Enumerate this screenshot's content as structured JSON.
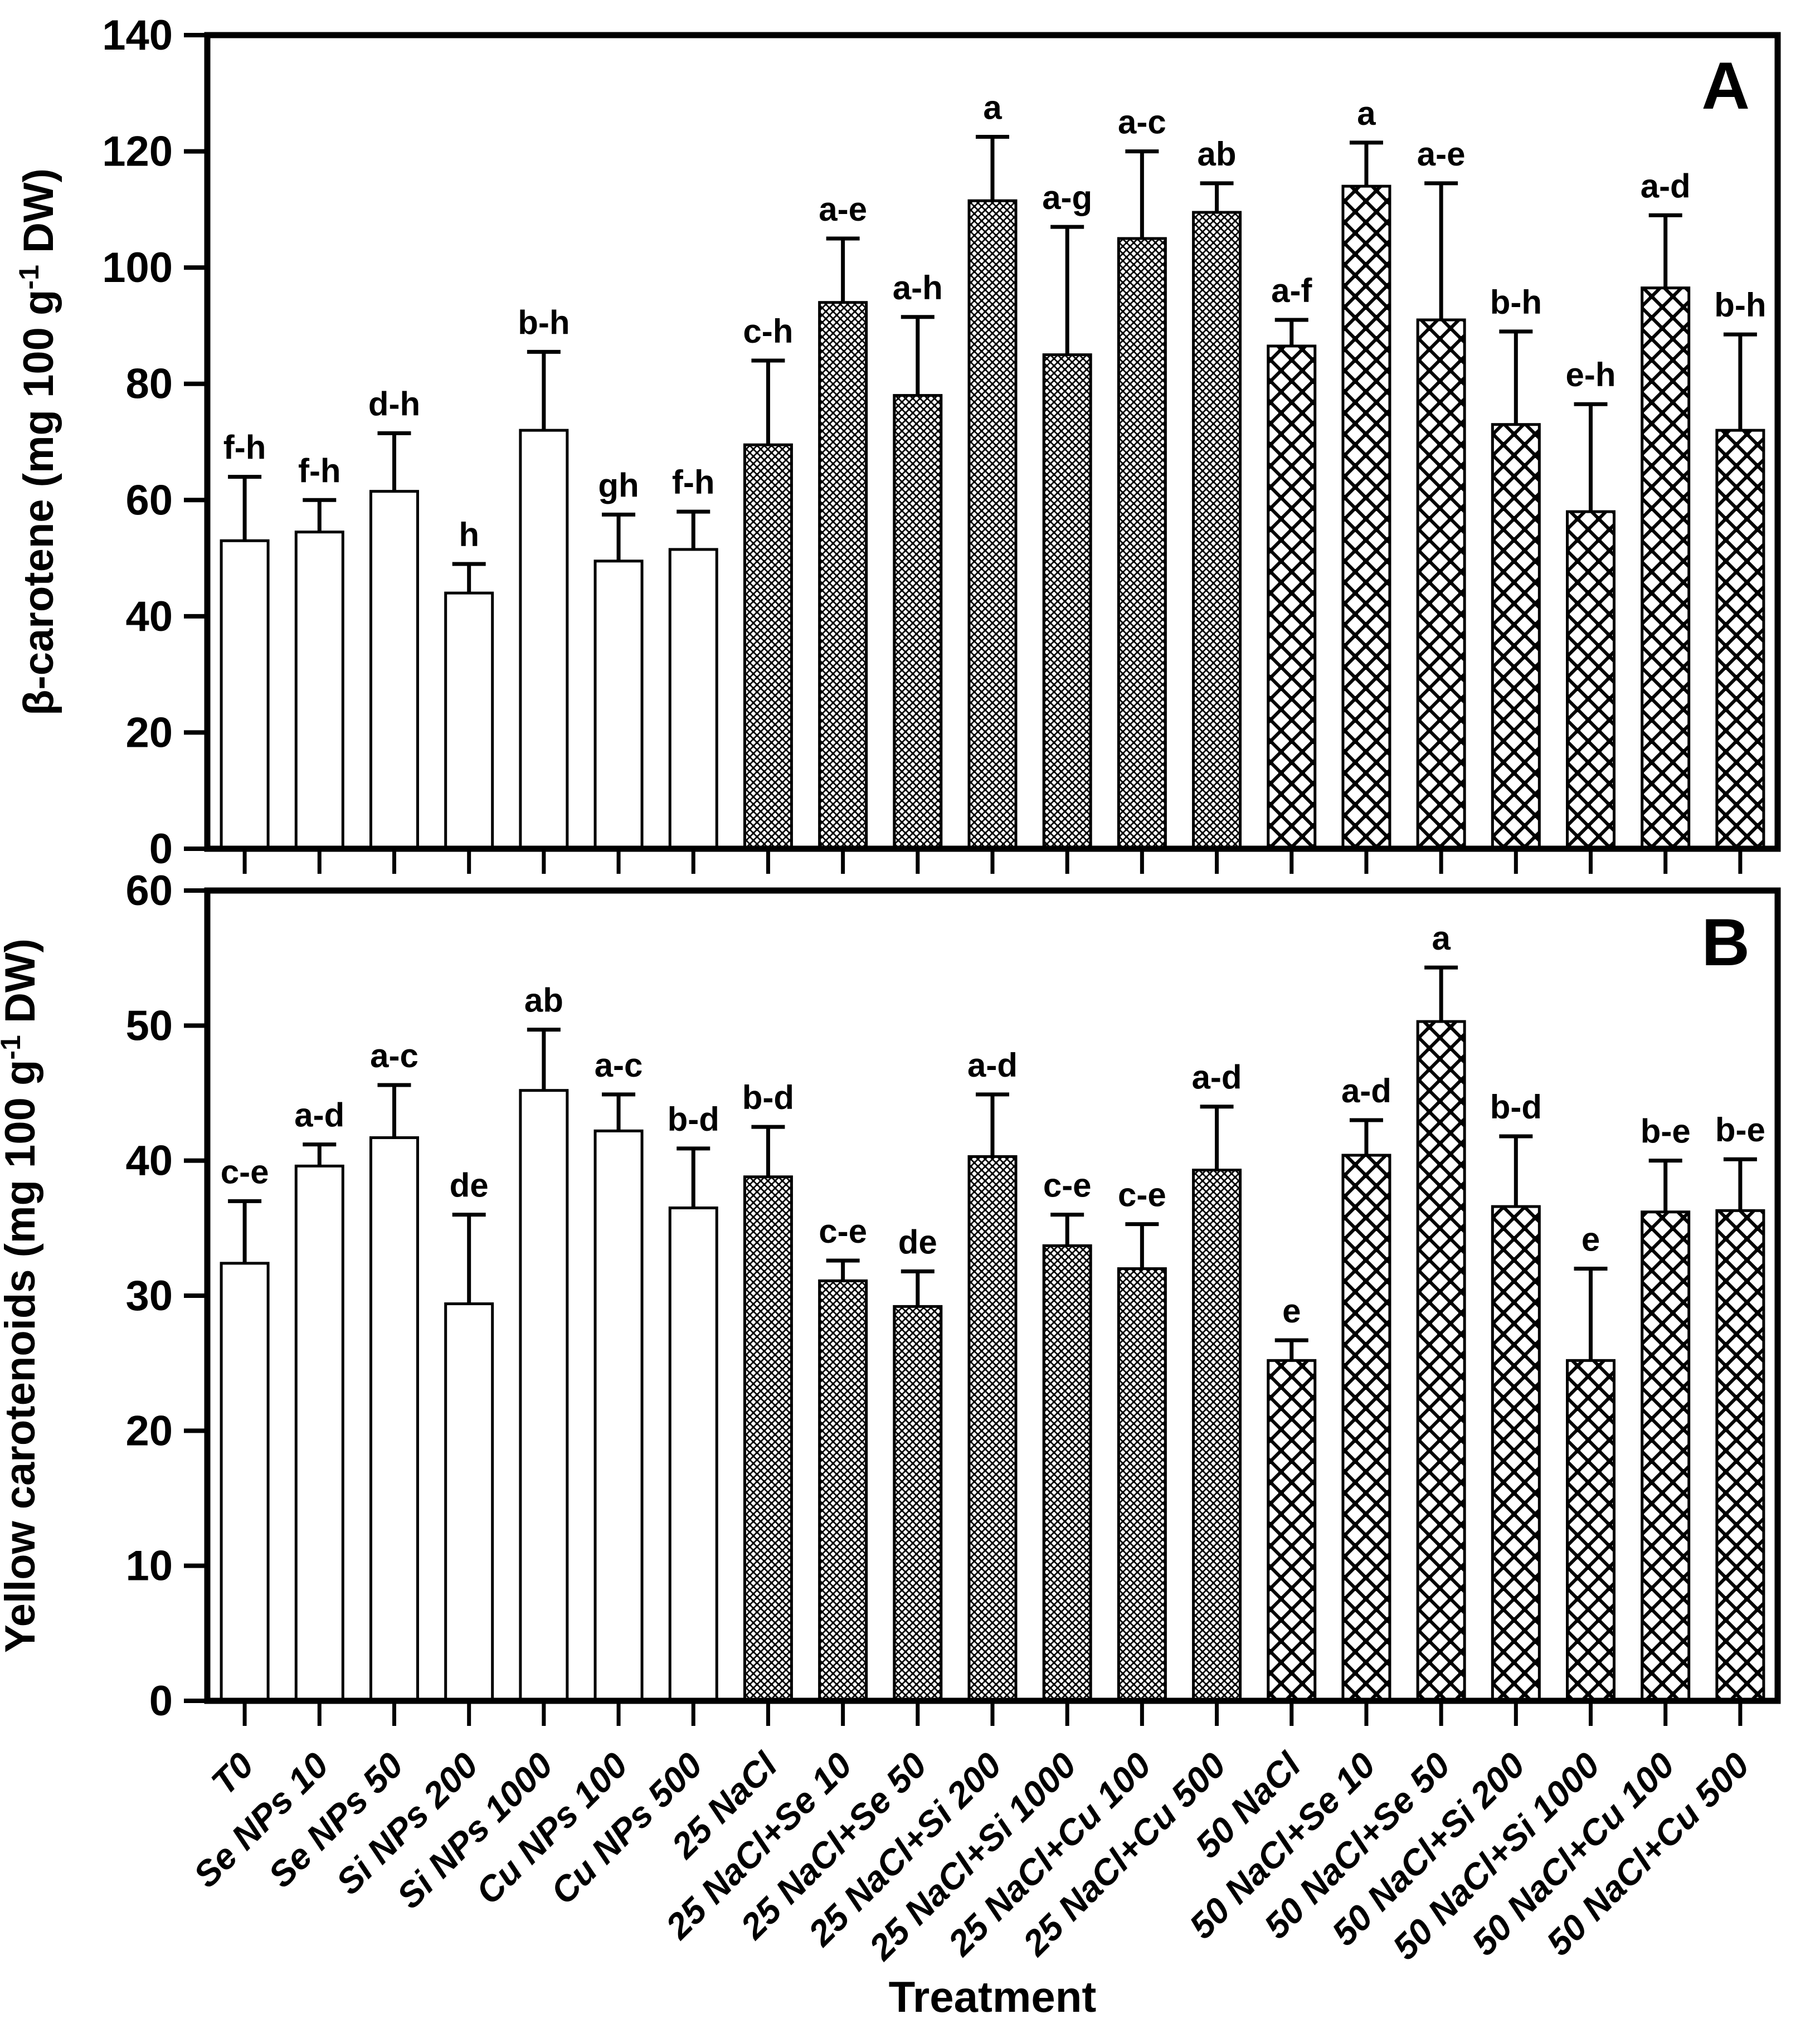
{
  "figure": {
    "xlabel": "Treatment",
    "background_color": "#ffffff",
    "ink_color": "#000000"
  },
  "chart_data": [
    {
      "type": "bar",
      "panel_label": "A",
      "ylabel": "β-carotene (mg 100 g⁻¹ DW)",
      "ylabel_parts": {
        "main": "β-carotene (mg 100 g",
        "sup": "-1",
        "end": " DW)"
      },
      "ylim": [
        0,
        140
      ],
      "ytick_step": 20,
      "grid": false,
      "legend": "none",
      "error_bars": "upper",
      "categories": [
        "T0",
        "Se NPs 10",
        "Se NPs 50",
        "Si NPs 200",
        "Si NPs 1000",
        "Cu NPs 100",
        "Cu NPs 500",
        "25 NaCl",
        "25 NaCl+Se 10",
        "25 NaCl+Se 50",
        "25 NaCl+Si 200",
        "25 NaCl+Si 1000",
        "25 NaCl+Cu 100",
        "25 NaCl+Cu 500",
        "50 NaCl",
        "50 NaCl+Se 10",
        "50 NaCl+Se 50",
        "50 NaCl+Si 200",
        "50 NaCl+Si 1000",
        "50 NaCl+Cu 100",
        "50 NaCl+Cu 500"
      ],
      "values": [
        53,
        54.5,
        61.5,
        44,
        72,
        49.5,
        51.5,
        69.5,
        94,
        78,
        111.5,
        85,
        105,
        109.5,
        86.5,
        114,
        91,
        73,
        58,
        96.5,
        72
      ],
      "errors_up": [
        11,
        5.5,
        10,
        5,
        13.5,
        8,
        6.5,
        14.5,
        11,
        13.5,
        11,
        22,
        15,
        5,
        4.5,
        7.5,
        23.5,
        16,
        18.5,
        12.5,
        16.5
      ],
      "sig_letters": [
        "f-h",
        "f-h",
        "d-h",
        "h",
        "b-h",
        "gh",
        "f-h",
        "c-h",
        "a-e",
        "a-h",
        "a",
        "a-g",
        "a-c",
        "ab",
        "a-f",
        "a",
        "a-e",
        "b-h",
        "e-h",
        "a-d",
        "b-h"
      ],
      "bar_patterns": [
        "plain",
        "plain",
        "plain",
        "plain",
        "plain",
        "plain",
        "plain",
        "fine",
        "fine",
        "fine",
        "fine",
        "fine",
        "fine",
        "fine",
        "coarse",
        "coarse",
        "coarse",
        "coarse",
        "coarse",
        "coarse",
        "coarse"
      ]
    },
    {
      "type": "bar",
      "panel_label": "B",
      "ylabel": "Yellow carotenoids (mg 100 g⁻¹ DW)",
      "ylabel_parts": {
        "main": "Yellow carotenoids (mg 100 g",
        "sup": "-1",
        "end": " DW)"
      },
      "ylim": [
        0,
        60
      ],
      "ytick_step": 10,
      "grid": false,
      "legend": "none",
      "error_bars": "upper",
      "categories": [
        "T0",
        "Se NPs 10",
        "Se NPs 50",
        "Si NPs 200",
        "Si NPs 1000",
        "Cu NPs 100",
        "Cu NPs 500",
        "25 NaCl",
        "25 NaCl+Se 10",
        "25 NaCl+Se 50",
        "25 NaCl+Si 200",
        "25 NaCl+Si 1000",
        "25 NaCl+Cu 100",
        "25 NaCl+Cu 500",
        "50 NaCl",
        "50 NaCl+Se 10",
        "50 NaCl+Se 50",
        "50 NaCl+Si 200",
        "50 NaCl+Si 1000",
        "50 NaCl+Cu 100",
        "50 NaCl+Cu 500"
      ],
      "values": [
        32.4,
        39.6,
        41.7,
        29.4,
        45.2,
        42.2,
        36.5,
        38.8,
        31.1,
        29.2,
        40.3,
        33.7,
        32,
        39.3,
        25.2,
        40.4,
        50.3,
        36.6,
        25.2,
        36.2,
        36.3
      ],
      "errors_up": [
        4.6,
        1.6,
        3.9,
        6.6,
        4.5,
        2.7,
        4.4,
        3.7,
        1.5,
        2.6,
        4.6,
        2.3,
        3.3,
        4.7,
        1.5,
        2.6,
        4,
        5.2,
        6.8,
        3.8,
        3.8
      ],
      "sig_letters": [
        "c-e",
        "a-d",
        "a-c",
        "de",
        "ab",
        "a-c",
        "b-d",
        "b-d",
        "c-e",
        "de",
        "a-d",
        "c-e",
        "c-e",
        "a-d",
        "e",
        "a-d",
        "a",
        "b-d",
        "e",
        "b-e",
        "b-e"
      ],
      "bar_patterns": [
        "plain",
        "plain",
        "plain",
        "plain",
        "plain",
        "plain",
        "plain",
        "fine",
        "fine",
        "fine",
        "fine",
        "fine",
        "fine",
        "fine",
        "coarse",
        "coarse",
        "coarse",
        "coarse",
        "coarse",
        "coarse",
        "coarse"
      ]
    }
  ]
}
